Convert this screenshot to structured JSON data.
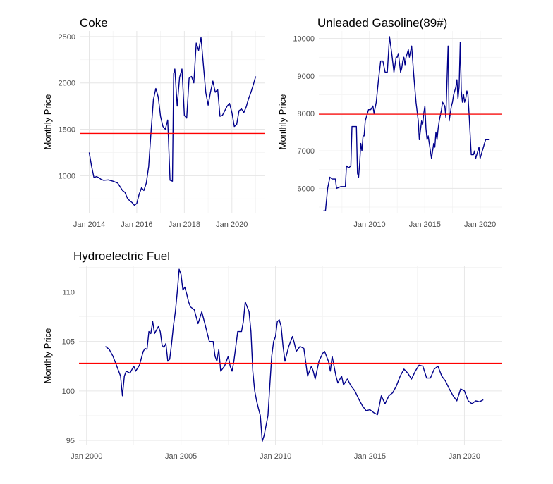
{
  "colors": {
    "series": "#00008B",
    "reference": "#FF0000"
  },
  "chart_data": [
    {
      "type": "line",
      "title": "Coke",
      "xlabel": "",
      "ylabel": "Monthly Price",
      "xlim": [
        2013.6,
        2021.4
      ],
      "ylim": [
        600,
        2560
      ],
      "x_ticks": [
        2014,
        2016,
        2018,
        2020
      ],
      "x_tick_labels": [
        "Jan 2014",
        "Jan 2016",
        "Jan 2018",
        "Jan 2020"
      ],
      "y_ticks": [
        1000,
        1500,
        2000,
        2500
      ],
      "y_tick_labels": [
        "1000",
        "1500",
        "2000",
        "2500"
      ],
      "reference_line": 1455,
      "series": [
        {
          "name": "Coke",
          "x": [
            2014.0,
            2014.1,
            2014.2,
            2014.3,
            2014.4,
            2014.5,
            2014.6,
            2014.8,
            2015.0,
            2015.2,
            2015.4,
            2015.5,
            2015.6,
            2015.7,
            2015.8,
            2015.9,
            2016.0,
            2016.1,
            2016.2,
            2016.3,
            2016.4,
            2016.5,
            2016.6,
            2016.7,
            2016.8,
            2016.9,
            2017.0,
            2017.1,
            2017.2,
            2017.3,
            2017.4,
            2017.5,
            2017.55,
            2017.6,
            2017.7,
            2017.8,
            2017.9,
            2018.0,
            2018.1,
            2018.2,
            2018.3,
            2018.4,
            2018.5,
            2018.6,
            2018.7,
            2018.8,
            2018.9,
            2019.0,
            2019.1,
            2019.2,
            2019.3,
            2019.4,
            2019.5,
            2019.6,
            2019.7,
            2019.8,
            2019.9,
            2020.0,
            2020.1,
            2020.2,
            2020.3,
            2020.4,
            2020.5,
            2020.6,
            2020.7,
            2020.8,
            2020.9,
            2021.0
          ],
          "y": [
            1250,
            1100,
            980,
            990,
            980,
            960,
            950,
            955,
            940,
            920,
            840,
            820,
            760,
            730,
            710,
            680,
            700,
            800,
            870,
            840,
            920,
            1100,
            1480,
            1820,
            1940,
            1850,
            1640,
            1530,
            1500,
            1600,
            950,
            940,
            2100,
            2150,
            1750,
            2060,
            2150,
            1650,
            1620,
            2050,
            2070,
            2000,
            2430,
            2350,
            2490,
            2200,
            1900,
            1760,
            1900,
            2020,
            1900,
            1930,
            1640,
            1650,
            1700,
            1750,
            1780,
            1680,
            1530,
            1550,
            1700,
            1720,
            1680,
            1740,
            1830,
            1900,
            1980,
            2070
          ]
        }
      ]
    },
    {
      "type": "line",
      "title": "Unleaded Gasoline(89#)",
      "xlabel": "",
      "ylabel": "Monthly Price",
      "xlim": [
        2005.4,
        2022.0
      ],
      "ylim": [
        5350,
        10200
      ],
      "x_ticks": [
        2010,
        2015,
        2020
      ],
      "x_tick_labels": [
        "Jan 2010",
        "Jan 2015",
        "Jan 2020"
      ],
      "y_ticks": [
        6000,
        7000,
        8000,
        9000,
        10000
      ],
      "y_tick_labels": [
        "6000",
        "7000",
        "8000",
        "9000",
        "10000"
      ],
      "reference_line": 7980,
      "series": [
        {
          "name": "Unleaded Gasoline(89#)",
          "x": [
            2005.8,
            2006.0,
            2006.2,
            2006.4,
            2006.6,
            2006.9,
            2007.0,
            2007.4,
            2007.8,
            2007.9,
            2008.1,
            2008.3,
            2008.4,
            2008.8,
            2008.9,
            2009.0,
            2009.1,
            2009.2,
            2009.3,
            2009.4,
            2009.5,
            2009.6,
            2009.7,
            2009.8,
            2009.9,
            2010.1,
            2010.3,
            2010.4,
            2010.6,
            2010.7,
            2010.8,
            2011.0,
            2011.2,
            2011.4,
            2011.6,
            2011.8,
            2012.0,
            2012.2,
            2012.3,
            2012.4,
            2012.5,
            2012.6,
            2012.8,
            2012.9,
            2013.0,
            2013.1,
            2013.2,
            2013.3,
            2013.4,
            2013.5,
            2013.6,
            2013.8,
            2014.0,
            2014.2,
            2014.4,
            2014.5,
            2014.7,
            2014.8,
            2014.9,
            2015.0,
            2015.1,
            2015.2,
            2015.3,
            2015.4,
            2015.5,
            2015.6,
            2015.8,
            2015.9,
            2016.0,
            2016.1,
            2016.2,
            2016.3,
            2016.5,
            2016.6,
            2016.8,
            2016.9,
            2017.1,
            2017.2,
            2017.4,
            2017.5,
            2017.6,
            2017.7,
            2017.8,
            2017.9,
            2018.0,
            2018.1,
            2018.2,
            2018.3,
            2018.4,
            2018.5,
            2018.6,
            2018.7,
            2018.8,
            2018.9,
            2019.0,
            2019.2,
            2019.3,
            2019.4,
            2019.5,
            2019.6,
            2019.8,
            2019.9,
            2020.0,
            2020.1,
            2020.2,
            2020.3,
            2020.4,
            2020.5,
            2020.6,
            2020.7,
            2020.8
          ],
          "y": [
            5400,
            5400,
            6000,
            6300,
            6250,
            6250,
            6000,
            6050,
            6050,
            6600,
            6550,
            6600,
            7650,
            7650,
            6400,
            6300,
            6700,
            7200,
            7000,
            7400,
            7400,
            7800,
            7900,
            8000,
            8100,
            8100,
            8200,
            8000,
            8300,
            8600,
            8900,
            9400,
            9400,
            9100,
            9100,
            10050,
            9600,
            9100,
            9300,
            9500,
            9500,
            9600,
            9100,
            9200,
            9400,
            9500,
            9300,
            9500,
            9600,
            9700,
            9500,
            9800,
            9000,
            8300,
            7800,
            7300,
            7800,
            7700,
            8000,
            8200,
            7600,
            7300,
            7400,
            7200,
            7000,
            6800,
            7200,
            7100,
            7500,
            7300,
            7600,
            7800,
            8100,
            8300,
            8200,
            7900,
            9800,
            7800,
            8200,
            8300,
            8500,
            8600,
            8700,
            8900,
            8400,
            8700,
            9900,
            8600,
            8300,
            8500,
            8300,
            8400,
            8600,
            8500,
            8000,
            6900,
            6900,
            6900,
            7000,
            6800,
            7000,
            7100,
            6800,
            6900,
            7000,
            7100,
            7200,
            7300,
            7300,
            7300,
            7300
          ]
        }
      ]
    },
    {
      "type": "line",
      "title": "Hydroelectric Fuel",
      "xlabel": "",
      "ylabel": "Monthly Price",
      "xlim": [
        1999.6,
        2022.0
      ],
      "ylim": [
        94.5,
        112.6
      ],
      "x_ticks": [
        2000,
        2005,
        2010,
        2015,
        2020
      ],
      "x_tick_labels": [
        "Jan 2000",
        "Jan 2005",
        "Jan 2010",
        "Jan 2015",
        "Jan 2020"
      ],
      "y_ticks": [
        95,
        100,
        105,
        110
      ],
      "y_tick_labels": [
        "95",
        "100",
        "105",
        "110"
      ],
      "reference_line": 102.8,
      "series": [
        {
          "name": "Hydroelectric Fuel",
          "x": [
            2001.0,
            2001.2,
            2001.4,
            2001.6,
            2001.8,
            2001.9,
            2002.0,
            2002.1,
            2002.3,
            2002.5,
            2002.6,
            2002.8,
            2003.0,
            2003.1,
            2003.2,
            2003.3,
            2003.4,
            2003.5,
            2003.6,
            2003.8,
            2003.9,
            2004.0,
            2004.1,
            2004.2,
            2004.3,
            2004.4,
            2004.5,
            2004.6,
            2004.7,
            2004.8,
            2004.9,
            2005.0,
            2005.1,
            2005.2,
            2005.3,
            2005.4,
            2005.5,
            2005.7,
            2005.9,
            2006.1,
            2006.3,
            2006.5,
            2006.7,
            2006.8,
            2006.9,
            2007.0,
            2007.1,
            2007.3,
            2007.5,
            2007.6,
            2007.7,
            2007.8,
            2008.0,
            2008.2,
            2008.3,
            2008.4,
            2008.5,
            2008.6,
            2008.7,
            2008.8,
            2008.9,
            2009.0,
            2009.1,
            2009.2,
            2009.3,
            2009.4,
            2009.5,
            2009.6,
            2009.7,
            2009.8,
            2009.9,
            2010.0,
            2010.1,
            2010.2,
            2010.3,
            2010.4,
            2010.5,
            2010.7,
            2010.9,
            2011.0,
            2011.1,
            2011.3,
            2011.5,
            2011.7,
            2011.9,
            2012.0,
            2012.1,
            2012.3,
            2012.5,
            2012.6,
            2012.8,
            2012.9,
            2013.0,
            2013.2,
            2013.3,
            2013.5,
            2013.6,
            2013.8,
            2014.0,
            2014.2,
            2014.4,
            2014.6,
            2014.8,
            2015.0,
            2015.2,
            2015.4,
            2015.6,
            2015.8,
            2016.0,
            2016.2,
            2016.4,
            2016.6,
            2016.8,
            2017.0,
            2017.2,
            2017.4,
            2017.6,
            2017.8,
            2018.0,
            2018.2,
            2018.4,
            2018.6,
            2018.8,
            2019.0,
            2019.2,
            2019.4,
            2019.6,
            2019.8,
            2020.0,
            2020.2,
            2020.4,
            2020.6,
            2020.8,
            2021.0
          ],
          "y": [
            104.5,
            104.2,
            103.5,
            102.5,
            101.5,
            99.5,
            101.5,
            102.0,
            101.8,
            102.5,
            102.0,
            102.6,
            104.0,
            104.3,
            104.2,
            106.0,
            105.8,
            107.0,
            105.8,
            106.5,
            106.0,
            104.6,
            104.4,
            104.8,
            103.0,
            103.2,
            104.8,
            106.6,
            108.0,
            110.0,
            112.3,
            111.8,
            110.2,
            110.5,
            109.8,
            109.0,
            108.5,
            108.2,
            106.8,
            108.0,
            106.5,
            105.0,
            105.0,
            103.5,
            103.0,
            104.2,
            102.0,
            102.5,
            103.5,
            102.5,
            102.0,
            103.0,
            106.0,
            106.0,
            107.0,
            109.0,
            108.5,
            108.0,
            106.0,
            102.0,
            100.0,
            99.0,
            98.2,
            97.5,
            94.9,
            95.5,
            96.5,
            97.5,
            100.5,
            103.5,
            105.0,
            105.5,
            107.0,
            107.2,
            106.5,
            104.5,
            103.0,
            104.5,
            105.5,
            104.8,
            104.0,
            104.5,
            104.3,
            101.5,
            102.5,
            102.0,
            101.2,
            103.0,
            103.8,
            104.0,
            103.0,
            102.0,
            103.5,
            101.5,
            100.8,
            101.5,
            100.6,
            101.2,
            100.5,
            100.0,
            99.2,
            98.5,
            98.0,
            98.1,
            97.8,
            97.6,
            99.5,
            98.7,
            99.5,
            99.8,
            100.5,
            101.5,
            102.2,
            101.8,
            101.2,
            102.0,
            102.6,
            102.5,
            101.3,
            101.3,
            102.2,
            102.5,
            101.5,
            101.0,
            100.2,
            99.5,
            99.0,
            100.2,
            100.0,
            99.0,
            98.7,
            99.0,
            98.9,
            99.1
          ]
        }
      ]
    }
  ]
}
